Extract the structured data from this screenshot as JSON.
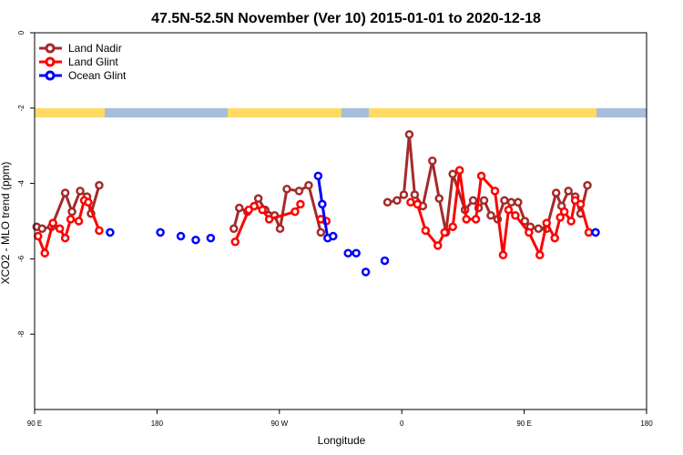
{
  "chart_data": {
    "type": "line",
    "title": "47.5N-52.5N November (Ver 10)   2015-01-01 to 2020-12-18",
    "xlabel": "Longitude",
    "ylabel": "XCO2 - MLO trend (ppm)",
    "xlim": [
      90,
      540
    ],
    "ylim": [
      0,
      -10
    ],
    "x_ticks": [
      {
        "value": 90,
        "label": "90 E"
      },
      {
        "value": 180,
        "label": "180"
      },
      {
        "value": 270,
        "label": "90 W"
      },
      {
        "value": 360,
        "label": "0"
      },
      {
        "value": 450,
        "label": "90 E"
      },
      {
        "value": 540,
        "label": "180"
      }
    ],
    "y_ticks": [
      {
        "value": 0,
        "label": "0"
      },
      {
        "value": -2,
        "label": "-2"
      },
      {
        "value": -4,
        "label": "-4"
      },
      {
        "value": -6,
        "label": "-6"
      },
      {
        "value": -8,
        "label": "-8"
      }
    ],
    "legend": {
      "position": "top-left"
    },
    "land_band": {
      "y_top": -2.0,
      "y_bottom": -2.25,
      "land_color": "#FFD966",
      "ocean_color": "#A7BEDB"
    },
    "series": [
      {
        "name": "Land Nadir",
        "color": "#A52A2A",
        "segments": [
          [
            [
              91.5,
              -5.15
            ],
            [
              95.5,
              -5.2
            ],
            [
              102.5,
              -5.15
            ],
            [
              112.5,
              -4.25
            ],
            [
              117.5,
              -4.75
            ],
            [
              123.5,
              -4.2
            ],
            [
              128.5,
              -4.35
            ],
            [
              131.5,
              -4.8
            ],
            [
              137.5,
              -4.05
            ]
          ],
          [
            [
              236.5,
              -5.2
            ],
            [
              240.5,
              -4.65
            ],
            [
              246.5,
              -4.75
            ],
            [
              251.5,
              -4.6
            ],
            [
              254.5,
              -4.4
            ],
            [
              259.5,
              -4.7
            ],
            [
              266.5,
              -4.85
            ],
            [
              270.5,
              -5.2
            ],
            [
              275.5,
              -4.15
            ],
            [
              284.5,
              -4.2
            ],
            [
              291.5,
              -4.05
            ],
            [
              300.5,
              -5.3
            ]
          ],
          [
            [
              349.5,
              -4.5
            ],
            [
              356.5,
              -4.45
            ],
            [
              361.5,
              -4.3
            ],
            [
              365.5,
              -2.7
            ],
            [
              369.5,
              -4.3
            ],
            [
              375.5,
              -4.6
            ],
            [
              382.5,
              -3.4
            ],
            [
              387.5,
              -4.4
            ],
            [
              392.5,
              -5.3
            ],
            [
              397.5,
              -3.75
            ],
            [
              406.5,
              -4.7
            ],
            [
              412.5,
              -4.45
            ],
            [
              416.5,
              -4.65
            ],
            [
              420.5,
              -4.45
            ],
            [
              425.5,
              -4.85
            ],
            [
              430.5,
              -4.95
            ],
            [
              435.5,
              -4.45
            ],
            [
              440.5,
              -4.5
            ],
            [
              445.5,
              -4.5
            ],
            [
              450.5,
              -5.0
            ],
            [
              454.5,
              -5.15
            ],
            [
              460.5,
              -5.2
            ],
            [
              466.5,
              -5.2
            ],
            [
              473.5,
              -4.25
            ],
            [
              477.5,
              -4.6
            ],
            [
              482.5,
              -4.2
            ],
            [
              487.5,
              -4.35
            ],
            [
              491.5,
              -4.8
            ],
            [
              496.5,
              -4.05
            ]
          ]
        ]
      },
      {
        "name": "Land Glint",
        "color": "#FF0000",
        "segments": [
          [
            [
              92.5,
              -5.4
            ],
            [
              97.5,
              -5.85
            ],
            [
              103.5,
              -5.05
            ],
            [
              108.5,
              -5.2
            ],
            [
              112.5,
              -5.45
            ],
            [
              116.5,
              -4.95
            ],
            [
              122.5,
              -5.0
            ],
            [
              126.5,
              -4.45
            ],
            [
              129.5,
              -4.5
            ],
            [
              137.5,
              -5.25
            ]
          ],
          [
            [
              237.5,
              -5.55
            ],
            [
              247.5,
              -4.7
            ],
            [
              251.5,
              -4.6
            ],
            [
              257.5,
              -4.7
            ],
            [
              262.5,
              -4.95
            ],
            [
              281.5,
              -4.75
            ],
            [
              285.5,
              -4.55
            ]
          ],
          [
            [
              300.5,
              -4.95
            ],
            [
              304.5,
              -5.0
            ]
          ],
          [
            [
              366.5,
              -4.5
            ],
            [
              371.5,
              -4.55
            ],
            [
              377.5,
              -5.25
            ],
            [
              386.5,
              -5.65
            ],
            [
              391.5,
              -5.3
            ],
            [
              397.5,
              -5.15
            ],
            [
              402.5,
              -3.65
            ],
            [
              407.5,
              -4.95
            ],
            [
              414.5,
              -4.95
            ],
            [
              418.5,
              -3.8
            ],
            [
              428.5,
              -4.2
            ],
            [
              434.5,
              -5.9
            ],
            [
              438.5,
              -4.7
            ],
            [
              443.5,
              -4.85
            ],
            [
              453.5,
              -5.3
            ],
            [
              461.5,
              -5.9
            ],
            [
              466.5,
              -5.05
            ],
            [
              472.5,
              -5.45
            ],
            [
              476.5,
              -4.9
            ],
            [
              479.5,
              -4.75
            ],
            [
              484.5,
              -5.0
            ],
            [
              487.5,
              -4.45
            ],
            [
              491.5,
              -4.55
            ],
            [
              497.5,
              -5.3
            ]
          ]
        ]
      },
      {
        "name": "Ocean Glint",
        "color": "#0000FF",
        "segments": [
          [
            [
              145.5,
              -5.3
            ]
          ],
          [
            [
              182.5,
              -5.3
            ]
          ],
          [
            [
              197.5,
              -5.4
            ]
          ],
          [
            [
              208.5,
              -5.5
            ]
          ],
          [
            [
              219.5,
              -5.45
            ]
          ],
          [
            [
              298.5,
              -3.8
            ],
            [
              301.5,
              -4.55
            ],
            [
              305.5,
              -5.45
            ],
            [
              309.5,
              -5.4
            ]
          ],
          [
            [
              320.5,
              -5.85
            ],
            [
              326.5,
              -5.85
            ]
          ],
          [
            [
              333.5,
              -6.35
            ]
          ],
          [
            [
              347.5,
              -6.05
            ]
          ],
          [
            [
              502.5,
              -5.3
            ]
          ]
        ]
      }
    ]
  }
}
